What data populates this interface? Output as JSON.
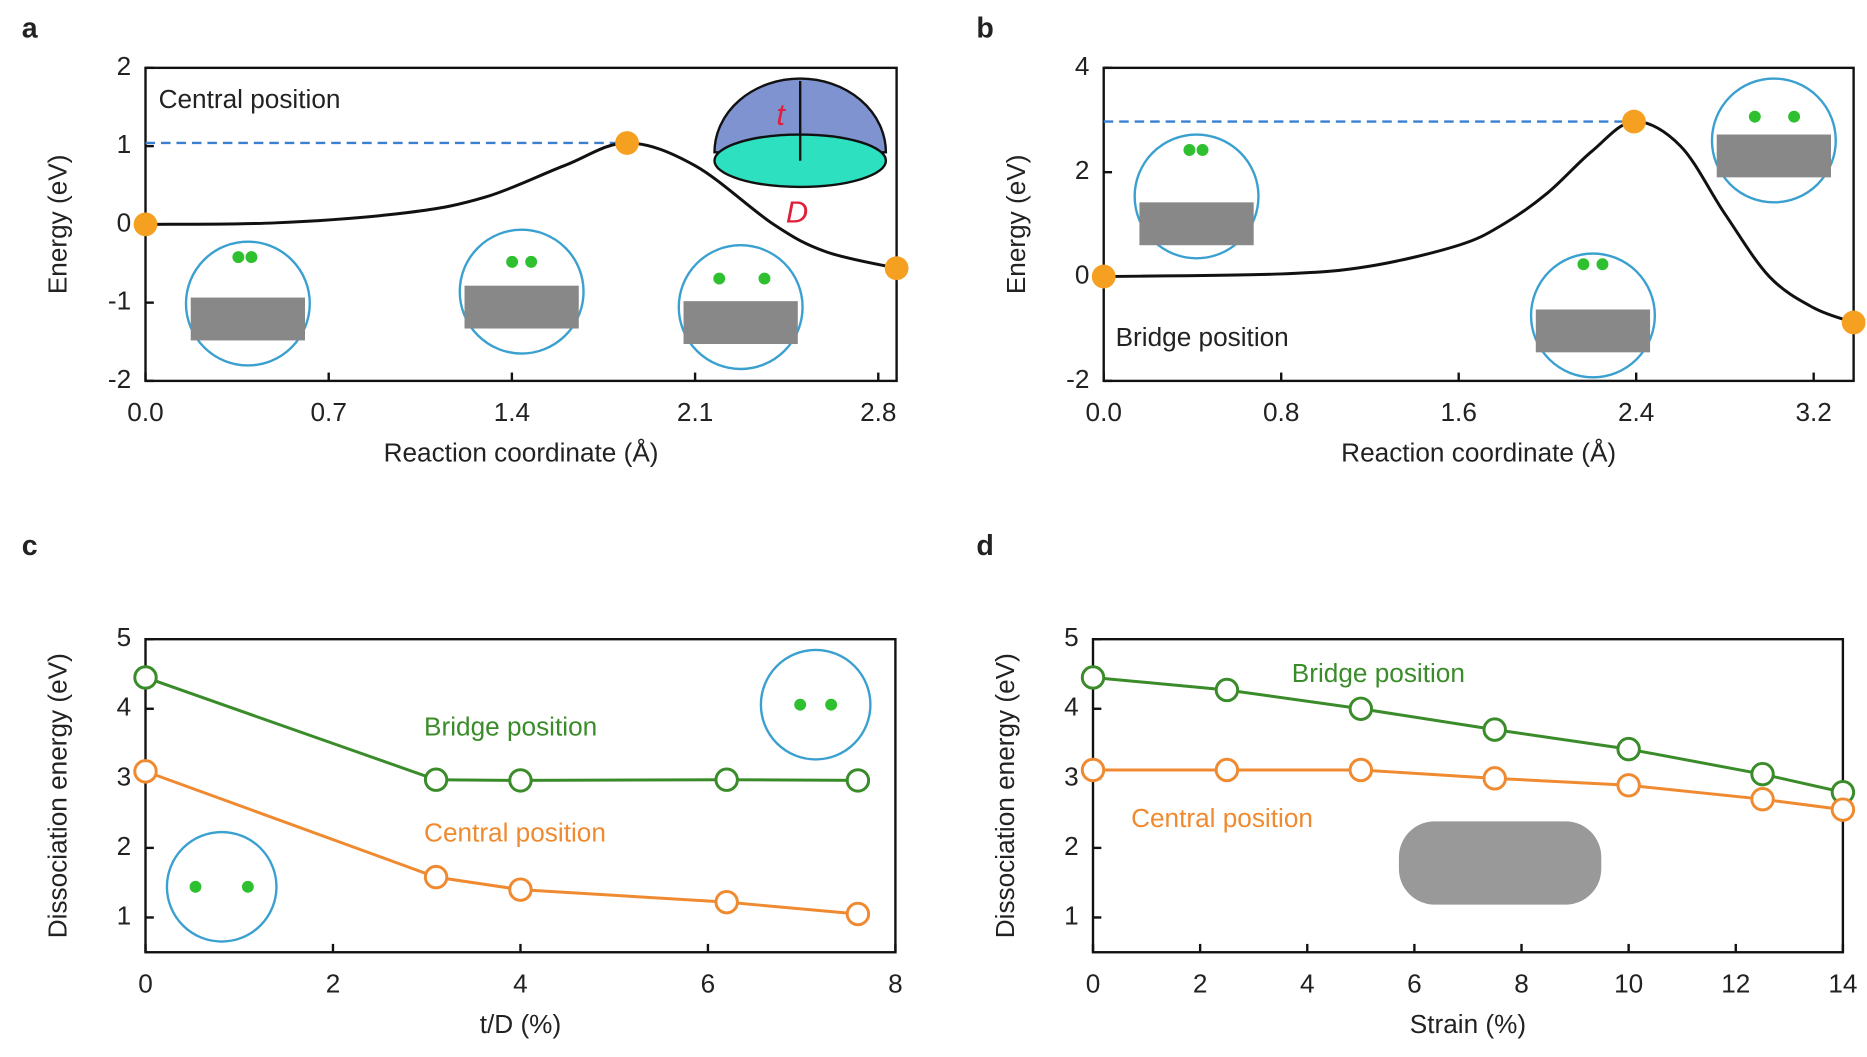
{
  "chart_data": [
    {
      "type": "line",
      "label": "a",
      "annotation": "Central position",
      "inset_labels": [
        "t",
        "D"
      ],
      "xlabel": "Reaction coordinate (Å)",
      "ylabel": "Energy (eV)",
      "xlim": [
        0,
        2.87
      ],
      "ylim": [
        -2,
        2
      ],
      "xticks": [
        {
          "value": 0,
          "label": "0.0"
        },
        0.7,
        1.4,
        2.1,
        2.8
      ],
      "yticks": [
        -2,
        -1,
        0,
        1,
        2
      ],
      "marker_color": "#f5a020",
      "series": [
        {
          "color": "#111111",
          "x": [
            0,
            0.5,
            1.0,
            1.3,
            1.6,
            1.84,
            2.1,
            2.4,
            2.6,
            2.87
          ],
          "values": [
            0,
            0.02,
            0.15,
            0.35,
            0.75,
            1.04,
            0.75,
            0.0,
            -0.35,
            -0.56
          ]
        }
      ]
    },
    {
      "type": "line",
      "label": "b",
      "annotation": "Bridge position",
      "xlabel": "Reaction coordinate (Å)",
      "ylabel": "Energy (eV)",
      "xlim": [
        0,
        3.38
      ],
      "ylim": [
        -2,
        4
      ],
      "xticks": [
        {
          "value": 0,
          "label": "0.0"
        },
        0.8,
        1.6,
        2.4,
        3.2
      ],
      "yticks": [
        -2,
        0,
        2,
        4
      ],
      "marker_color": "#f5a020",
      "series": [
        {
          "color": "#111111",
          "x": [
            0,
            0.8,
            1.2,
            1.6,
            1.8,
            2.0,
            2.2,
            2.39,
            2.6,
            2.8,
            3.0,
            3.2,
            3.38
          ],
          "values": [
            0,
            0.05,
            0.2,
            0.6,
            1.0,
            1.6,
            2.4,
            2.97,
            2.5,
            1.2,
            0.0,
            -0.6,
            -0.88
          ]
        }
      ]
    },
    {
      "type": "scatter-line",
      "label": "c",
      "xlabel": "t/D (%)",
      "ylabel": "Dissociation energy (eV)",
      "xlim": [
        0,
        8
      ],
      "ylim": [
        0.5,
        5
      ],
      "xticks": [
        0,
        2,
        4,
        6,
        8
      ],
      "yticks": [
        1,
        2,
        3,
        4,
        5
      ],
      "series": [
        {
          "name": "Bridge position",
          "color": "#3a8c2a",
          "x": [
            0,
            3.1,
            4.0,
            6.2,
            7.6
          ],
          "values": [
            4.45,
            2.98,
            2.97,
            2.98,
            2.97
          ]
        },
        {
          "name": "Central position",
          "color": "#f08a30",
          "x": [
            0,
            3.1,
            4.0,
            6.2,
            7.6
          ],
          "values": [
            3.1,
            1.58,
            1.4,
            1.22,
            1.05
          ]
        }
      ]
    },
    {
      "type": "scatter-line",
      "label": "d",
      "xlabel": "Strain (%)",
      "ylabel": "Dissociation energy (eV)",
      "xlim": [
        0,
        14
      ],
      "ylim": [
        0.5,
        5
      ],
      "xticks": [
        0,
        2,
        4,
        6,
        8,
        10,
        12,
        14
      ],
      "yticks": [
        1,
        2,
        3,
        4,
        5
      ],
      "series": [
        {
          "name": "Bridge position",
          "color": "#3a8c2a",
          "x": [
            0,
            2.5,
            5,
            7.5,
            10,
            12.5,
            14
          ],
          "values": [
            4.45,
            4.27,
            4.0,
            3.7,
            3.42,
            3.06,
            2.8
          ]
        },
        {
          "name": "Central position",
          "color": "#f08a30",
          "x": [
            0,
            2.5,
            5,
            7.5,
            10,
            12.5,
            14
          ],
          "values": [
            3.12,
            3.12,
            3.12,
            3.0,
            2.9,
            2.7,
            2.55
          ]
        }
      ]
    }
  ]
}
